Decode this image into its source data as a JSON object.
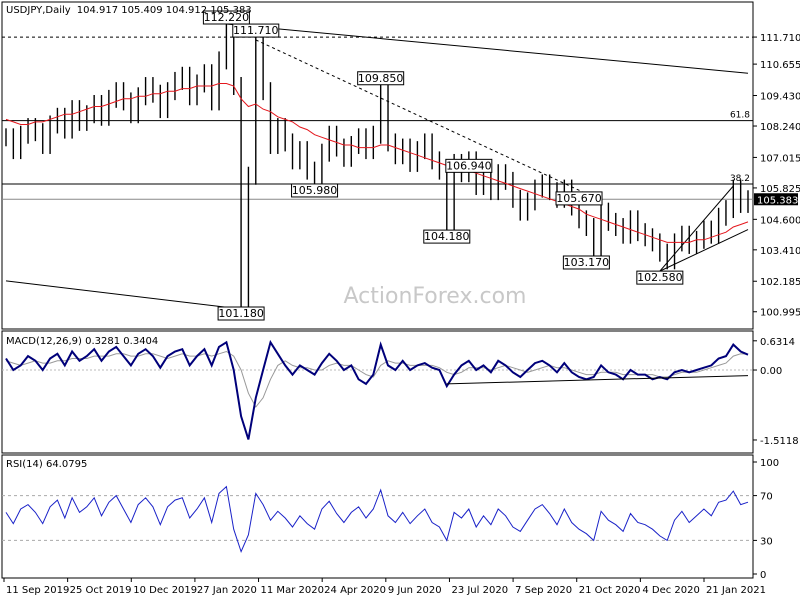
{
  "chart_data": {
    "type": "line",
    "title": "USDJPY,Daily",
    "ohlc": "104.917 105.409 104.912 105.383",
    "watermark": "ActionForex.com",
    "x_tick_labels": [
      "11 Sep 2019",
      "25 Oct 2019",
      "10 Dec 2019",
      "27 Jan 2020",
      "11 Mar 2020",
      "24 Apr 2020",
      "9 Jun 2020",
      "23 Jul 2020",
      "7 Sep 2020",
      "21 Oct 2020",
      "4 Dec 2020",
      "21 Jan 2021"
    ],
    "price_panel": {
      "ylim": [
        100.4,
        113.0
      ],
      "tick_labels": [
        "111.710",
        "110.655",
        "109.430",
        "108.240",
        "107.015",
        "105.825",
        "104.600",
        "103.410",
        "102.185",
        "100.995"
      ],
      "tick_values": [
        111.71,
        110.655,
        109.43,
        108.24,
        107.015,
        105.825,
        104.6,
        103.41,
        102.185,
        100.995
      ],
      "current_price": {
        "value": 105.383,
        "label": "105.383"
      },
      "horizontal_levels": [
        {
          "value": 111.71,
          "style": "dashed",
          "label": "111.710"
        },
        {
          "value": 108.45,
          "label": "61.8"
        },
        {
          "value": 105.98,
          "label": "38.2"
        }
      ],
      "annotations": [
        {
          "label": "112.220",
          "value": 112.22,
          "x_index": 30
        },
        {
          "label": "111.710",
          "value": 111.71,
          "x_index": 34
        },
        {
          "label": "109.850",
          "value": 109.85,
          "x_index": 51
        },
        {
          "label": "105.980",
          "value": 105.98,
          "x_index": 42
        },
        {
          "label": "106.940",
          "value": 106.94,
          "x_index": 63
        },
        {
          "label": "104.180",
          "value": 104.18,
          "x_index": 60
        },
        {
          "label": "105.670",
          "value": 105.67,
          "x_index": 78
        },
        {
          "label": "103.170",
          "value": 103.17,
          "x_index": 79
        },
        {
          "label": "102.580",
          "value": 102.58,
          "x_index": 89
        },
        {
          "label": "101.180",
          "value": 101.18,
          "x_index": 32
        }
      ],
      "price_series": [
        107.8,
        107.3,
        107.9,
        108.2,
        108.0,
        107.5,
        108.3,
        108.6,
        108.1,
        108.9,
        108.4,
        108.7,
        109.1,
        108.6,
        109.3,
        109.6,
        109.2,
        108.7,
        109.4,
        109.8,
        109.5,
        108.9,
        109.6,
        110.0,
        110.2,
        109.4,
        109.9,
        110.3,
        109.2,
        110.8,
        112.0,
        109.8,
        101.5,
        106.3,
        111.4,
        109.6,
        107.5,
        108.2,
        107.6,
        106.9,
        107.3,
        106.5,
        106.1,
        107.2,
        107.9,
        107.4,
        107.0,
        107.5,
        107.8,
        107.3,
        107.9,
        109.6,
        107.6,
        107.1,
        107.4,
        106.8,
        107.3,
        107.6,
        106.9,
        106.5,
        104.5,
        106.8,
        106.4,
        106.9,
        105.9,
        106.3,
        105.7,
        106.4,
        106.1,
        105.4,
        104.9,
        105.3,
        105.8,
        106.0,
        105.7,
        105.4,
        105.8,
        105.1,
        104.6,
        104.3,
        103.5,
        104.9,
        104.5,
        104.3,
        104.0,
        104.6,
        104.1,
        103.9,
        103.7,
        103.3,
        103.0,
        103.7,
        104.0,
        103.6,
        103.8,
        104.2,
        104.0,
        104.7,
        105.0,
        105.8,
        105.2,
        105.383
      ],
      "moving_average": [
        108.5,
        108.4,
        108.3,
        108.3,
        108.4,
        108.4,
        108.5,
        108.6,
        108.7,
        108.7,
        108.8,
        108.9,
        109.0,
        109.0,
        109.1,
        109.2,
        109.3,
        109.3,
        109.4,
        109.4,
        109.5,
        109.5,
        109.6,
        109.6,
        109.7,
        109.7,
        109.8,
        109.8,
        109.8,
        109.9,
        109.9,
        109.8,
        109.3,
        109.0,
        109.1,
        108.9,
        108.8,
        108.6,
        108.5,
        108.4,
        108.2,
        108.1,
        107.9,
        107.8,
        107.7,
        107.6,
        107.5,
        107.5,
        107.4,
        107.4,
        107.4,
        107.5,
        107.5,
        107.4,
        107.3,
        107.2,
        107.1,
        107.0,
        106.9,
        106.8,
        106.7,
        106.6,
        106.5,
        106.5,
        106.4,
        106.3,
        106.2,
        106.1,
        106.0,
        105.9,
        105.8,
        105.7,
        105.6,
        105.5,
        105.4,
        105.3,
        105.2,
        105.1,
        105.0,
        104.8,
        104.7,
        104.6,
        104.5,
        104.4,
        104.3,
        104.2,
        104.1,
        104.0,
        103.9,
        103.8,
        103.7,
        103.7,
        103.7,
        103.7,
        103.8,
        103.8,
        103.9,
        104.0,
        104.1,
        104.3,
        104.4,
        104.5
      ]
    },
    "macd_panel": {
      "label": "MACD(12,26,9) 0.3281 0.3404",
      "tick_labels": [
        "0.6314",
        "0.00",
        "-1.5118"
      ],
      "tick_values": [
        0.6314,
        0.0,
        -1.5118
      ],
      "ylim": [
        -1.75,
        0.8
      ],
      "macd": [
        0.25,
        0.0,
        0.1,
        0.3,
        0.2,
        0.0,
        0.25,
        0.35,
        0.1,
        0.4,
        0.2,
        0.3,
        0.45,
        0.2,
        0.4,
        0.5,
        0.3,
        0.1,
        0.35,
        0.45,
        0.3,
        0.05,
        0.3,
        0.4,
        0.45,
        0.1,
        0.3,
        0.45,
        0.1,
        0.5,
        0.6,
        0.0,
        -1.0,
        -1.5,
        -0.6,
        0.0,
        0.6,
        0.35,
        0.1,
        -0.1,
        0.1,
        0.0,
        -0.1,
        0.15,
        0.35,
        0.2,
        0.0,
        0.1,
        -0.2,
        -0.3,
        -0.1,
        0.55,
        0.1,
        0.0,
        0.2,
        0.0,
        0.1,
        0.15,
        0.05,
        0.0,
        -0.35,
        -0.1,
        0.1,
        0.2,
        0.0,
        0.1,
        -0.05,
        0.2,
        0.1,
        -0.05,
        -0.15,
        0.0,
        0.15,
        0.2,
        0.1,
        -0.05,
        0.15,
        -0.05,
        -0.15,
        -0.2,
        -0.15,
        0.1,
        -0.05,
        -0.1,
        -0.2,
        0.0,
        -0.1,
        -0.1,
        -0.2,
        -0.15,
        -0.2,
        -0.05,
        0.0,
        -0.05,
        0.0,
        0.05,
        0.1,
        0.25,
        0.3,
        0.55,
        0.4,
        0.33
      ],
      "signal": [
        0.2,
        0.15,
        0.1,
        0.15,
        0.2,
        0.15,
        0.15,
        0.2,
        0.2,
        0.25,
        0.25,
        0.25,
        0.3,
        0.3,
        0.3,
        0.35,
        0.35,
        0.3,
        0.3,
        0.35,
        0.35,
        0.3,
        0.25,
        0.3,
        0.35,
        0.3,
        0.3,
        0.35,
        0.3,
        0.35,
        0.4,
        0.3,
        0.0,
        -0.5,
        -0.8,
        -0.6,
        -0.2,
        0.1,
        0.2,
        0.1,
        0.05,
        0.05,
        0.0,
        0.0,
        0.1,
        0.15,
        0.1,
        0.1,
        0.0,
        -0.1,
        -0.15,
        0.1,
        0.2,
        0.15,
        0.15,
        0.1,
        0.1,
        0.1,
        0.1,
        0.05,
        -0.05,
        -0.1,
        -0.05,
        0.05,
        0.05,
        0.05,
        0.0,
        0.05,
        0.1,
        0.05,
        0.0,
        -0.05,
        0.0,
        0.05,
        0.1,
        0.05,
        0.05,
        0.0,
        -0.05,
        -0.1,
        -0.1,
        -0.05,
        -0.05,
        -0.05,
        -0.1,
        -0.1,
        -0.1,
        -0.1,
        -0.1,
        -0.15,
        -0.15,
        -0.1,
        -0.05,
        -0.05,
        -0.05,
        0.0,
        0.05,
        0.1,
        0.15,
        0.3,
        0.35,
        0.34
      ]
    },
    "rsi_panel": {
      "label": "RSI(14) 64.0795",
      "tick_labels": [
        "100",
        "70",
        "30",
        "0"
      ],
      "tick_values": [
        100,
        70,
        30,
        0
      ],
      "ylim": [
        0,
        100
      ],
      "levels": [
        70,
        30
      ],
      "rsi": [
        55,
        45,
        58,
        62,
        55,
        45,
        60,
        66,
        50,
        68,
        55,
        60,
        68,
        52,
        64,
        70,
        58,
        46,
        62,
        68,
        60,
        44,
        60,
        66,
        68,
        50,
        58,
        68,
        46,
        72,
        78,
        40,
        20,
        35,
        72,
        62,
        48,
        56,
        50,
        42,
        52,
        45,
        40,
        58,
        65,
        54,
        46,
        55,
        60,
        50,
        58,
        75,
        52,
        46,
        55,
        45,
        52,
        58,
        46,
        42,
        30,
        55,
        50,
        58,
        42,
        52,
        44,
        58,
        52,
        42,
        38,
        48,
        58,
        62,
        54,
        44,
        58,
        46,
        40,
        36,
        30,
        56,
        48,
        44,
        38,
        54,
        46,
        44,
        40,
        34,
        30,
        48,
        56,
        46,
        52,
        58,
        52,
        64,
        66,
        74,
        62,
        64.08
      ]
    }
  }
}
